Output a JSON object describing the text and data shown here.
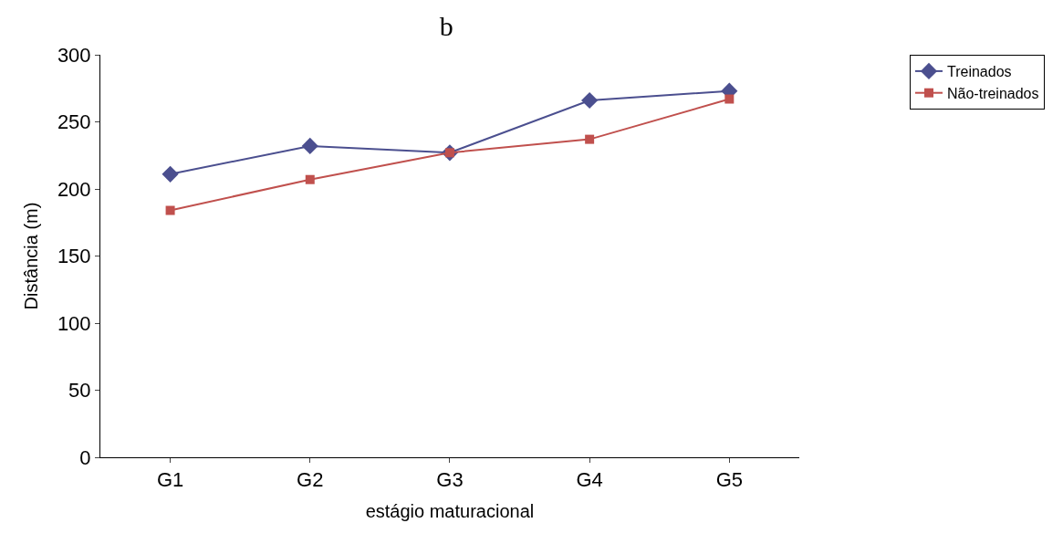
{
  "chart_data": {
    "type": "line",
    "title": "b",
    "xlabel": "estágio maturacional",
    "ylabel": "Distância (m)",
    "categories": [
      "G1",
      "G2",
      "G3",
      "G4",
      "G5"
    ],
    "series": [
      {
        "name": "Treinados",
        "color": "#4b4f8f",
        "values": [
          211,
          232,
          227,
          266,
          273
        ],
        "marker": "diamond"
      },
      {
        "name": "Não-treinados",
        "color": "#c0504d",
        "values": [
          184,
          207,
          227,
          237,
          267
        ],
        "marker": "square"
      }
    ],
    "ylim": [
      0,
      300
    ],
    "yticks": [
      0,
      50,
      100,
      150,
      200,
      250,
      300
    ],
    "legend": "top right",
    "line_style": "solid"
  }
}
